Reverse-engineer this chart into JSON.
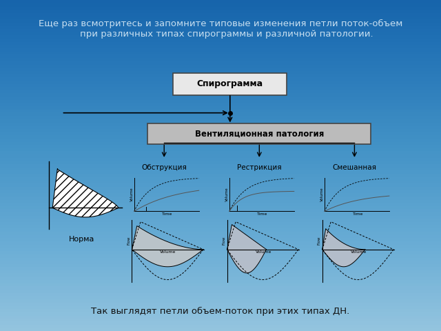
{
  "title_text": "Еще раз всмотритесь и запомните типовые изменения петли поток-объем\n    при различных типах спирограммы и различной патологии.",
  "bottom_text": "Так выглядят петли объем-поток при этих типах ДН.",
  "title_color": "#c8dff0",
  "bg_color": "#2178b4",
  "box_spirogramma": "Спирограмма",
  "box_ventilation": "Вентиляционная патология",
  "label_norma": "Норма",
  "labels_pathology": [
    "Обструкция",
    "Рестрикция",
    "Смешанная"
  ]
}
